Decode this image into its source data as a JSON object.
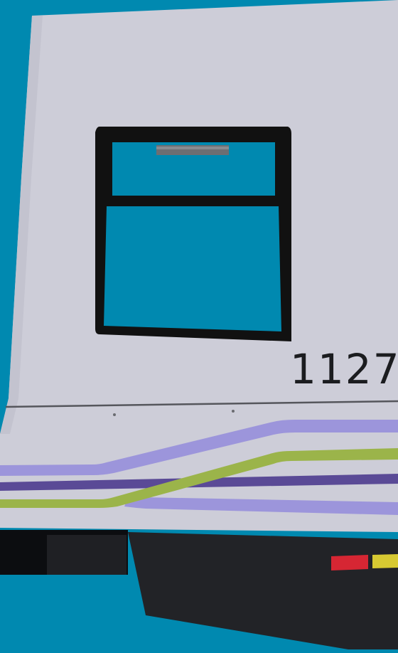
{
  "car": {
    "number": "1127"
  },
  "colors": {
    "sky": "#0089b0",
    "body": "#cdcdd8",
    "window_frame": "#111111",
    "stripe_light_purple": "#9c95db",
    "stripe_dark_purple": "#5a4a96",
    "stripe_green": "#9bb44a",
    "skirt": "#222327",
    "label_red": "#d62633",
    "label_yellow": "#d7c932"
  },
  "icons": {
    "warning_label_red": "warning-label",
    "warning_label_yellow": "warning-label"
  }
}
